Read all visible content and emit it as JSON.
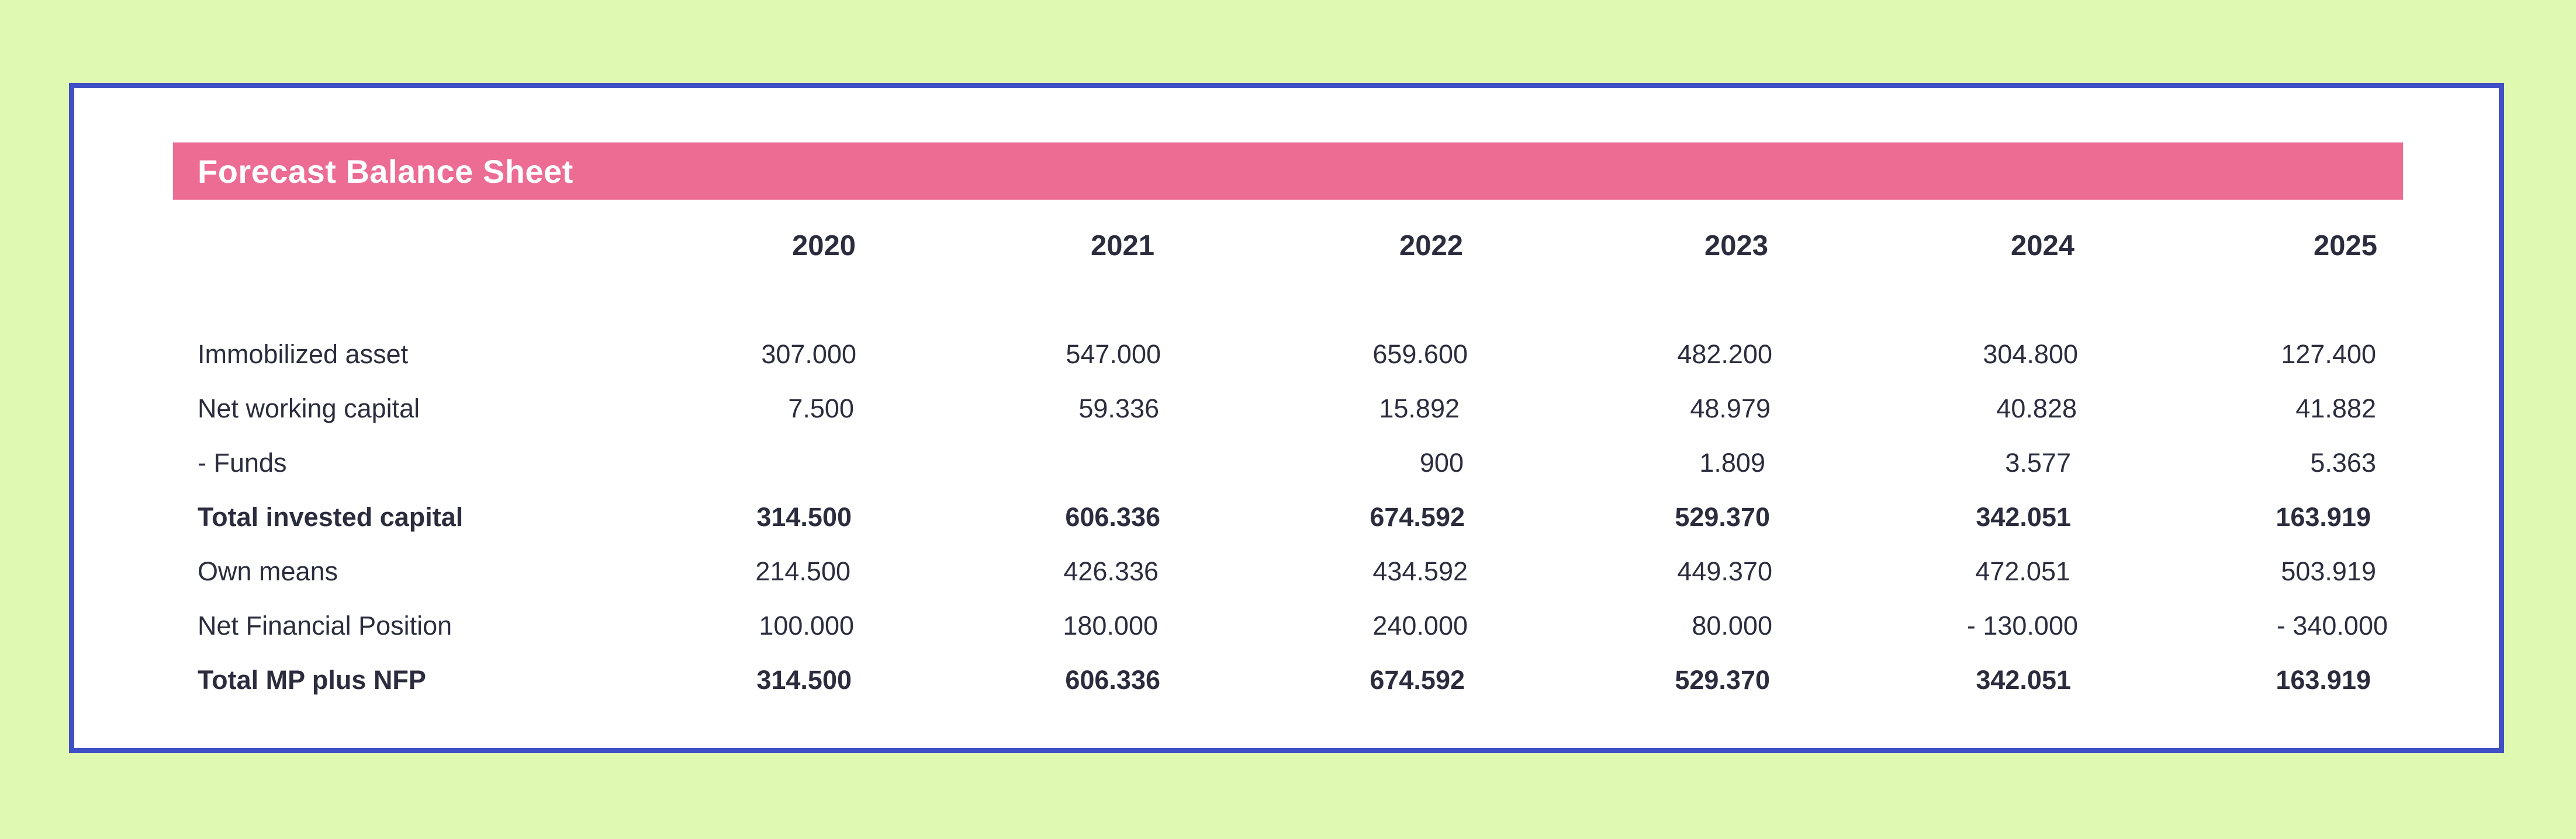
{
  "title": "Forecast Balance Sheet",
  "years": [
    "2020",
    "2021",
    "2022",
    "2023",
    "2024",
    "2025"
  ],
  "rows": [
    {
      "label": "Immobilized asset",
      "bold": false,
      "values": [
        "307.000",
        "547.000",
        "659.600",
        "482.200",
        "304.800",
        "127.400"
      ]
    },
    {
      "label": "Net working capital",
      "bold": false,
      "values": [
        "7.500",
        "59.336",
        "15.892",
        "48.979",
        "40.828",
        "41.882"
      ]
    },
    {
      "label": "- Funds",
      "bold": false,
      "values": [
        "",
        "",
        "900",
        "1.809",
        "3.577",
        "5.363"
      ]
    },
    {
      "label": "Total invested capital",
      "bold": true,
      "values": [
        "314.500",
        "606.336",
        "674.592",
        "529.370",
        "342.051",
        "163.919"
      ]
    },
    {
      "label": "Own means",
      "bold": false,
      "values": [
        "214.500",
        "426.336",
        "434.592",
        "449.370",
        "472.051",
        "503.919"
      ]
    },
    {
      "label": "Net Financial Position",
      "bold": false,
      "values": [
        "100.000",
        "180.000",
        "240.000",
        "80.000",
        "- 130.000",
        "- 340.000"
      ]
    },
    {
      "label": "Total MP plus NFP",
      "bold": true,
      "values": [
        "314.500",
        "606.336",
        "674.592",
        "529.370",
        "342.051",
        "163.919"
      ]
    }
  ],
  "colors": {
    "background": "#e0f9b0",
    "border": "#3f4fc6",
    "title_bar": "#ec6c94",
    "text": "#2b2d3e"
  }
}
